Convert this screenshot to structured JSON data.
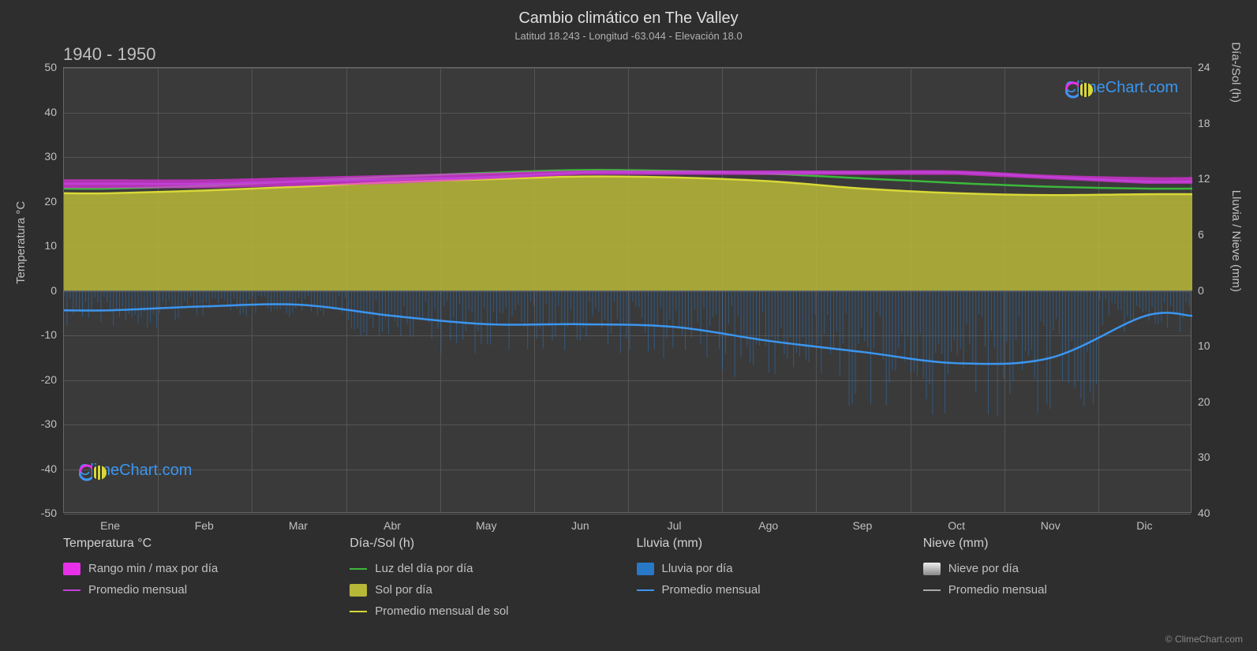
{
  "title": "Cambio climático en The Valley",
  "subtitle": "Latitud 18.243 - Longitud -63.044 - Elevación 18.0",
  "period": "1940 - 1950",
  "axes": {
    "left_label": "Temperatura °C",
    "right_label_top": "Día-/Sol (h)",
    "right_label_bottom": "Lluvia / Nieve (mm)",
    "temp_min": -50,
    "temp_max": 50,
    "temp_ticks": [
      50,
      40,
      30,
      20,
      10,
      0,
      -10,
      -20,
      -30,
      -40,
      -50
    ],
    "sun_ticks": [
      24,
      18,
      12,
      6,
      0
    ],
    "rain_ticks": [
      10,
      20,
      30,
      40
    ],
    "months": [
      "Ene",
      "Feb",
      "Mar",
      "Abr",
      "May",
      "Jun",
      "Jul",
      "Ago",
      "Sep",
      "Oct",
      "Nov",
      "Dic"
    ]
  },
  "colors": {
    "background": "#2e2e2e",
    "plot_bg": "#3a3a3a",
    "grid": "#555555",
    "text": "#c0c0c0",
    "temp_range": "#e830e8",
    "temp_avg": "#c040d8",
    "daylight": "#3cb83c",
    "sun_fill": "#b8b838",
    "sun_avg": "#d8d838",
    "rain_bar": "#2878c8",
    "rain_avg": "#3b96f0",
    "snow_bar": "#cccccc",
    "snow_avg": "#aaaaaa",
    "brand": "#3b96f0"
  },
  "series": {
    "temp_max_band": [
      25,
      25,
      25.5,
      26,
      26.5,
      27,
      27,
      27,
      27,
      27,
      26,
      25.5
    ],
    "temp_min_band": [
      23,
      23,
      23.5,
      24,
      25,
      26,
      26,
      26,
      26,
      26,
      25,
      24
    ],
    "temp_avg": [
      24,
      24,
      24.5,
      25,
      25.5,
      26.5,
      26.5,
      26.5,
      26.5,
      26.5,
      25.5,
      24.5
    ],
    "daylight_h": [
      11,
      11.3,
      11.8,
      12.3,
      12.7,
      13,
      12.9,
      12.6,
      12.1,
      11.6,
      11.2,
      11
    ],
    "sun_h": [
      10.5,
      10.8,
      11.2,
      11.7,
      12.0,
      12.3,
      12.2,
      11.8,
      11.0,
      10.5,
      10.3,
      10.4
    ],
    "rain_mm": [
      3.5,
      2.8,
      2.5,
      4.5,
      6,
      6,
      6.5,
      9,
      11,
      13,
      12,
      4.5
    ]
  },
  "legend": {
    "temp_title": "Temperatura °C",
    "temp_range": "Rango min / max por día",
    "temp_avg": "Promedio mensual",
    "sun_title": "Día-/Sol (h)",
    "daylight": "Luz del día por día",
    "sun_day": "Sol por día",
    "sun_avg": "Promedio mensual de sol",
    "rain_title": "Lluvia (mm)",
    "rain_day": "Lluvia por día",
    "rain_avg": "Promedio mensual",
    "snow_title": "Nieve (mm)",
    "snow_day": "Nieve por día",
    "snow_avg": "Promedio mensual"
  },
  "watermark": "ClimeChart.com",
  "copyright": "© ClimeChart.com"
}
